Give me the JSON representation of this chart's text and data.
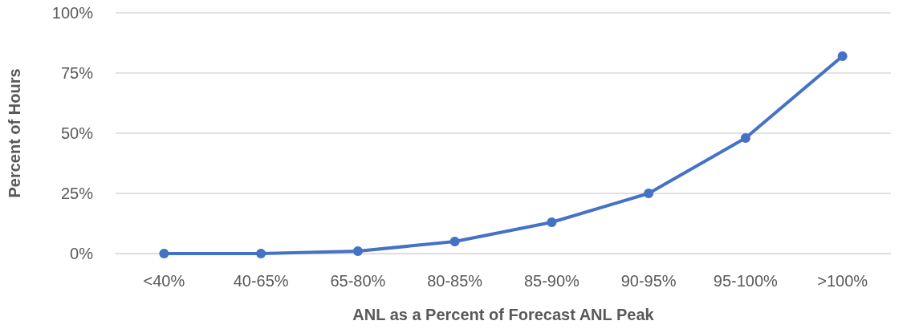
{
  "chart_data": {
    "type": "line",
    "xlabel": "ANL as a Percent of Forecast ANL Peak",
    "ylabel": "Percent of Hours",
    "categories": [
      "<40%",
      "40-65%",
      "65-80%",
      "80-85%",
      "85-90%",
      "90-95%",
      "95-100%",
      ">100%"
    ],
    "series": [
      {
        "color": "#4472c4",
        "values": [
          0,
          0,
          1,
          5,
          13,
          25,
          48,
          82
        ]
      }
    ],
    "ylim": [
      0,
      100
    ],
    "yticks": [
      {
        "value": 0,
        "label": "0%"
      },
      {
        "value": 25,
        "label": "25%"
      },
      {
        "value": 50,
        "label": "50%"
      },
      {
        "value": 75,
        "label": "75%"
      },
      {
        "value": 100,
        "label": "100%"
      }
    ],
    "grid": "y",
    "marker": "circle",
    "line_style": "solid"
  }
}
